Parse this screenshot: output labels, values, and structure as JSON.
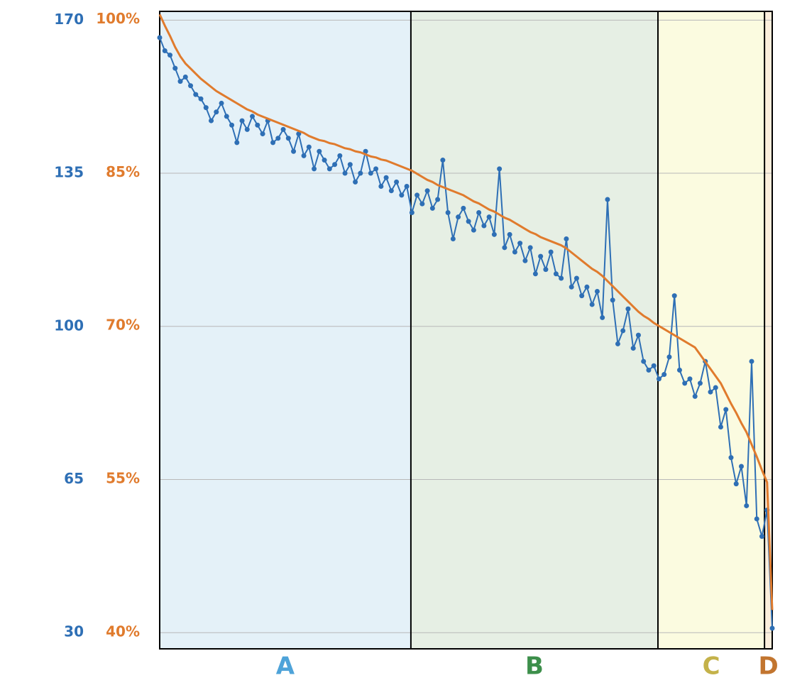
{
  "chart_data": {
    "type": "line",
    "xlim": [
      0,
      119
    ],
    "ylim": [
      26.3,
      172
    ],
    "yticks": [
      170,
      135,
      100,
      65,
      30
    ],
    "y2lim": [
      38.4,
      100.8
    ],
    "y2ticks": [
      {
        "value": 100,
        "label": "100%"
      },
      {
        "value": 85,
        "label": "85%"
      },
      {
        "value": 70,
        "label": "70%"
      },
      {
        "value": 55,
        "label": "55%"
      },
      {
        "value": 40,
        "label": "40%"
      }
    ],
    "grid": true,
    "zones": [
      {
        "label": "A",
        "start": 0,
        "end": 48.8,
        "color": "#4ea3d9",
        "background": "#e4f1f8"
      },
      {
        "label": "B",
        "start": 48.8,
        "end": 96.8,
        "color": "#3d8f4b",
        "background": "#e6efe4"
      },
      {
        "label": "C",
        "start": 96.8,
        "end": 117.5,
        "color": "#c4b24a",
        "background": "#fbfbe0"
      },
      {
        "label": "D",
        "start": 117.5,
        "end": 119,
        "color": "#c2752f",
        "background": "#fbeedc"
      }
    ],
    "series": [
      {
        "color": "#2e6fb5",
        "values": [
          166,
          163,
          162,
          159,
          156,
          157,
          155,
          153,
          152,
          150,
          147,
          149,
          151,
          148,
          146,
          142,
          147,
          145,
          148,
          146,
          144,
          147,
          142,
          143,
          145,
          143,
          140,
          144,
          139,
          141,
          136,
          140,
          138,
          136,
          137,
          139,
          135,
          137,
          133,
          135,
          140,
          135,
          136,
          132,
          134,
          131,
          133,
          130,
          132,
          126,
          130,
          128,
          131,
          127,
          129,
          138,
          126,
          120,
          125,
          127,
          124,
          122,
          126,
          123,
          125,
          121,
          136,
          118,
          121,
          117,
          119,
          115,
          118,
          112,
          116,
          113,
          117,
          112,
          111,
          120,
          109,
          111,
          107,
          109,
          105,
          108,
          102,
          129,
          106,
          96,
          99,
          104,
          95,
          98,
          92,
          90,
          91,
          88,
          89,
          93,
          107,
          90,
          87,
          88,
          84,
          87,
          92,
          85,
          86,
          77,
          81,
          70,
          64,
          68,
          59,
          92,
          56,
          52,
          58,
          31
        ]
      },
      {
        "color": "#e07b2d",
        "axis": "y2",
        "values": [
          100.5,
          99.4,
          98.4,
          97.3,
          96.4,
          95.7,
          95.2,
          94.7,
          94.2,
          93.8,
          93.4,
          93.0,
          92.7,
          92.4,
          92.1,
          91.8,
          91.5,
          91.2,
          91.0,
          90.7,
          90.5,
          90.3,
          90.1,
          89.9,
          89.7,
          89.5,
          89.3,
          89.1,
          88.9,
          88.6,
          88.4,
          88.2,
          88.1,
          87.9,
          87.8,
          87.6,
          87.4,
          87.3,
          87.1,
          87.0,
          86.8,
          86.6,
          86.5,
          86.3,
          86.2,
          86.0,
          85.8,
          85.6,
          85.4,
          85.2,
          84.9,
          84.6,
          84.3,
          84.1,
          83.8,
          83.6,
          83.4,
          83.2,
          83.0,
          82.8,
          82.5,
          82.2,
          82.0,
          81.7,
          81.4,
          81.2,
          80.9,
          80.6,
          80.4,
          80.1,
          79.8,
          79.5,
          79.2,
          79.0,
          78.7,
          78.5,
          78.3,
          78.1,
          77.9,
          77.6,
          77.2,
          76.8,
          76.4,
          76.0,
          75.6,
          75.3,
          74.9,
          74.4,
          73.9,
          73.4,
          72.9,
          72.4,
          71.9,
          71.4,
          71.0,
          70.7,
          70.3,
          70.0,
          69.7,
          69.4,
          69.1,
          68.8,
          68.5,
          68.2,
          67.9,
          67.2,
          66.5,
          65.8,
          65.1,
          64.4,
          63.4,
          62.4,
          61.5,
          60.5,
          59.6,
          58.4,
          57.2,
          55.9,
          54.7,
          42.2
        ]
      }
    ]
  }
}
